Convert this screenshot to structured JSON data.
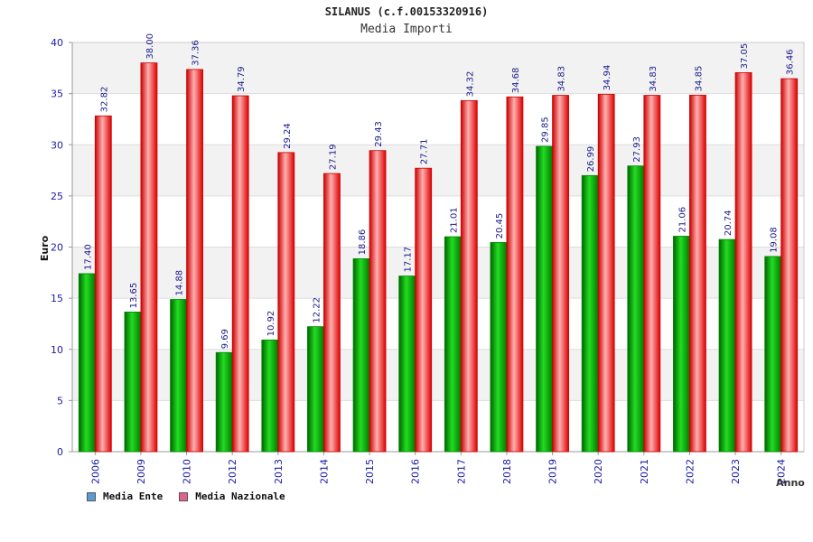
{
  "chart_data": {
    "type": "bar",
    "title": "SILANUS (c.f.00153320916)",
    "subtitle": "Media Importi",
    "ylabel": "Euro",
    "xlabel": "Anno",
    "ylim": [
      0,
      40
    ],
    "yticks": [
      0,
      5,
      10,
      15,
      20,
      25,
      30,
      35,
      40
    ],
    "grid": true,
    "legend_position": "bottom-left",
    "categories": [
      "2006",
      "2009",
      "2010",
      "2012",
      "2013",
      "2014",
      "2015",
      "2016",
      "2017",
      "2018",
      "2019",
      "2020",
      "2021",
      "2022",
      "2023",
      "2024"
    ],
    "series": [
      {
        "name": "Media Ente",
        "legend_color": "#5b9bd5",
        "bar_color": "#00a000",
        "values": [
          17.4,
          13.65,
          14.88,
          9.69,
          10.92,
          12.22,
          18.86,
          17.17,
          21.01,
          20.45,
          29.85,
          26.99,
          27.93,
          21.06,
          20.74,
          19.08
        ],
        "labels": [
          "17.40",
          "13.65",
          "14.88",
          "9.69",
          "10.92",
          "12.22",
          "18.86",
          "17.17",
          "21.01",
          "20.45",
          "29.85",
          "26.99",
          "27.93",
          "21.06",
          "20.74",
          "19.08"
        ]
      },
      {
        "name": "Media Nazionale",
        "legend_color": "#e06090",
        "bar_color": "#e00000",
        "values": [
          32.82,
          38.0,
          37.36,
          34.79,
          29.24,
          27.19,
          29.43,
          27.71,
          34.32,
          34.68,
          34.83,
          34.94,
          34.83,
          34.85,
          37.05,
          36.46
        ],
        "labels": [
          "32.82",
          "38.00",
          "37.36",
          "34.79",
          "29.24",
          "27.19",
          "29.43",
          "27.71",
          "34.32",
          "34.68",
          "34.83",
          "34.94",
          "34.83",
          "34.85",
          "37.05",
          "36.46"
        ]
      }
    ]
  }
}
